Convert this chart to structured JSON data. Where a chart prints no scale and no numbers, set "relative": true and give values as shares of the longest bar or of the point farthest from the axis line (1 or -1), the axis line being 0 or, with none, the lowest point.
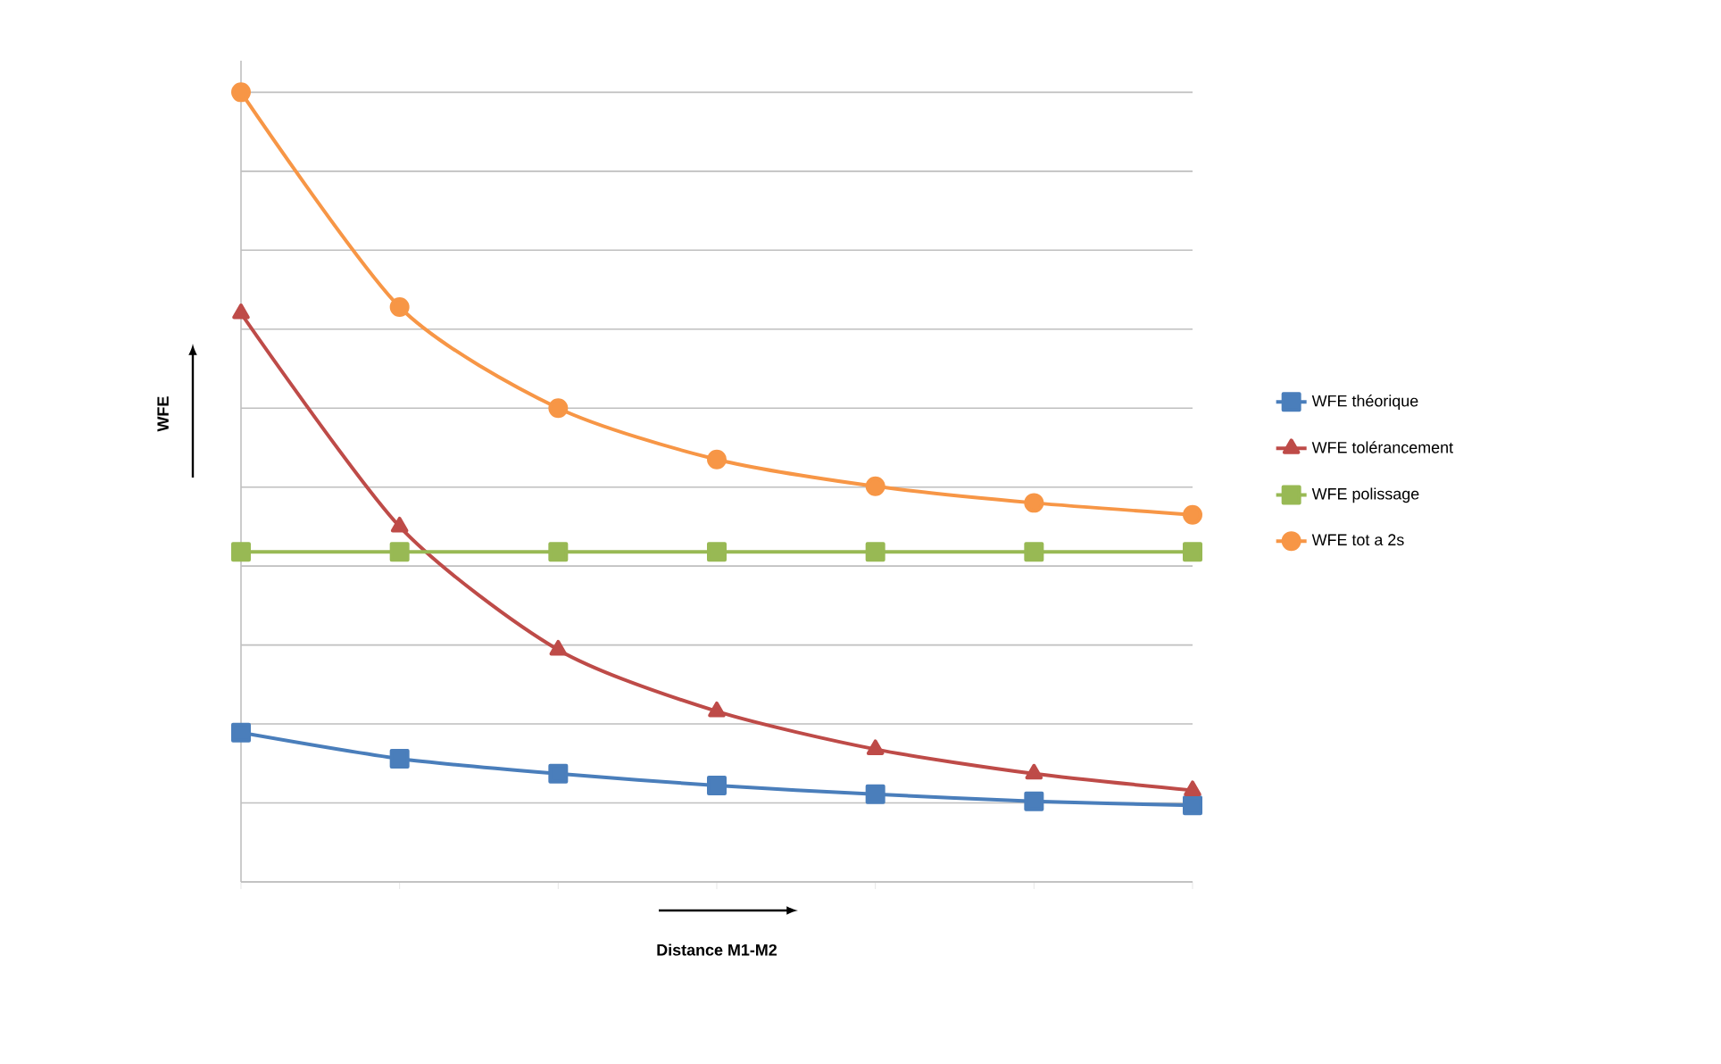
{
  "chart_data": {
    "type": "line",
    "relative": true,
    "xlabel": "Distance M1-M2",
    "ylabel": "WFE",
    "categories": [
      null,
      null,
      null,
      null,
      null,
      null,
      null
    ],
    "grid": "y",
    "legend": "right",
    "series": [
      {
        "name": "WFE théorique",
        "color": "#4a7ebb",
        "marker": "square",
        "values": [
          0.189,
          0.156,
          0.137,
          0.122,
          0.111,
          0.102,
          0.097
        ]
      },
      {
        "name": "WFE tolérancement",
        "color": "#be4b48",
        "marker": "triangle",
        "values": [
          0.72,
          0.45,
          0.294,
          0.216,
          0.168,
          0.137,
          0.116
        ]
      },
      {
        "name": "WFE polissage",
        "color": "#98b954",
        "marker": "square",
        "values": [
          0.418,
          0.418,
          0.418,
          0.418,
          0.418,
          0.418,
          0.418
        ]
      },
      {
        "name": "WFE tot a 2s",
        "color": "#f79646",
        "marker": "circle",
        "values": [
          1,
          0.728,
          0.6,
          0.535,
          0.501,
          0.48,
          0.465
        ]
      }
    ]
  }
}
